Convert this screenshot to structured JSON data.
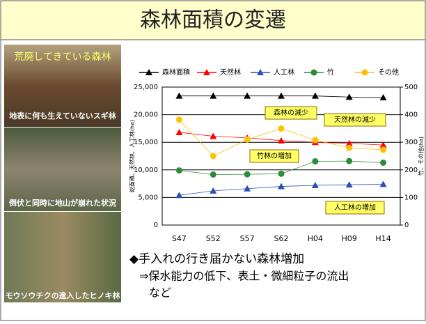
{
  "slide_title": "森林面積の変遷",
  "photos": {
    "heading": "荒廃してきている森林",
    "captions": [
      "地表に何も生えていないスギ林",
      "倒伏と同時に地山が崩れた状況",
      "モウソウチクの進入したヒノキ林"
    ]
  },
  "bullets": [
    "◆手入れの行き届かない森林増加",
    "⇒保水能力の低下、表土・微細粒子の流出",
    "など"
  ],
  "chart_data": {
    "type": "line",
    "categories": [
      "S47",
      "S52",
      "S57",
      "S62",
      "H04",
      "H09",
      "H14"
    ],
    "ylabel": "総面積、天然林、人工林(ha)",
    "y2label": "竹、その他(ha)",
    "ylim": [
      0,
      25000
    ],
    "yticks": [
      0,
      {
        "value": 5000,
        "label": "5,000"
      },
      {
        "value": 10000,
        "label": "10,000"
      },
      {
        "value": 15000,
        "label": "15,000"
      },
      {
        "value": 20000,
        "label": "20,000"
      },
      {
        "value": 25000,
        "label": "25,000"
      }
    ],
    "y2lim": [
      0,
      500
    ],
    "y2ticks": [
      0,
      100,
      200,
      300,
      400,
      500
    ],
    "grid": true,
    "legend": "top",
    "series": [
      {
        "name": "森林面積",
        "color": "#000000",
        "marker": "triangle",
        "values": [
          23400,
          23400,
          23400,
          23400,
          23400,
          23200,
          23100
        ]
      },
      {
        "name": "天然林",
        "color": "#ff0000",
        "marker": "triangle",
        "values": [
          16800,
          16100,
          15800,
          15300,
          15000,
          14800,
          14500
        ]
      },
      {
        "name": "人工林",
        "color": "#2a4fb5",
        "marker": "triangle",
        "values": [
          5400,
          6200,
          6600,
          7000,
          7200,
          7300,
          7400
        ]
      },
      {
        "name": "竹",
        "color": "#2e8b3a",
        "marker": "circle",
        "axis": "y2",
        "values": [
          198,
          183,
          184,
          186,
          231,
          232,
          226
        ]
      },
      {
        "name": "その他",
        "color": "#ffc000",
        "marker": "circle",
        "axis": "y2",
        "values": [
          382,
          250,
          310,
          350,
          308,
          280,
          273
        ]
      }
    ],
    "annotations": [
      "森林の減少",
      "天然林の減少",
      "竹林の増加",
      "人工林の増加"
    ]
  }
}
